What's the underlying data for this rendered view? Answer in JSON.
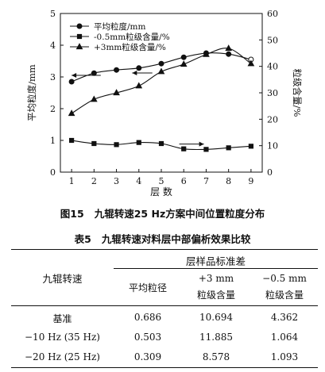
{
  "figure": {
    "caption_no": "图15",
    "caption_text": "九辊转速25 Hz方案中间位置粒度分布"
  },
  "chart_data": {
    "type": "line",
    "xlabel": "层 数",
    "ylabel_left": "平均粒度/mm",
    "ylabel_right": "粒级含量/%",
    "x": [
      1,
      2,
      3,
      4,
      5,
      6,
      7,
      8,
      9
    ],
    "xlim": [
      0.5,
      9.5
    ],
    "ylim_left": [
      0,
      5
    ],
    "ylim_right": [
      0,
      60
    ],
    "left_ticks": [
      0,
      1,
      2,
      3,
      4,
      5
    ],
    "right_ticks": [
      0,
      10,
      20,
      30,
      40,
      50,
      60
    ],
    "legend_position": "top-left",
    "series": [
      {
        "name": "平均粒度/mm",
        "axis": "left",
        "marker": "circle",
        "values": [
          2.85,
          3.12,
          3.22,
          3.28,
          3.42,
          3.62,
          3.75,
          3.72,
          3.55
        ]
      },
      {
        "name": "-0.5mm粒级含量/%",
        "axis": "right",
        "marker": "square",
        "values": [
          12.0,
          10.8,
          10.4,
          11.2,
          10.8,
          8.8,
          8.6,
          9.2,
          9.8
        ]
      },
      {
        "name": "+3mm粒级含量/%",
        "axis": "right",
        "marker": "triangle",
        "values": [
          22.2,
          27.5,
          30.0,
          32.6,
          38.0,
          40.8,
          44.5,
          46.8,
          41.0
        ]
      }
    ]
  },
  "table": {
    "caption_no": "表5",
    "caption_text": "九辊转速对料层中部偏析效果比较",
    "header_row_label": "九辊转速",
    "header_group": "层样品标准差",
    "col_headers": [
      [
        "平均粒径"
      ],
      [
        "+3 mm",
        "粒级含量"
      ],
      [
        "−0.5 mm",
        "粒级含量"
      ]
    ],
    "rows": [
      {
        "label": "基准",
        "values": [
          "0.686",
          "10.694",
          "4.362"
        ]
      },
      {
        "label": "−10 Hz (35 Hz)",
        "values": [
          "0.503",
          "11.885",
          "1.064"
        ]
      },
      {
        "label": "−20 Hz (25 Hz)",
        "values": [
          "0.309",
          "8.578",
          "1.093"
        ]
      }
    ]
  }
}
